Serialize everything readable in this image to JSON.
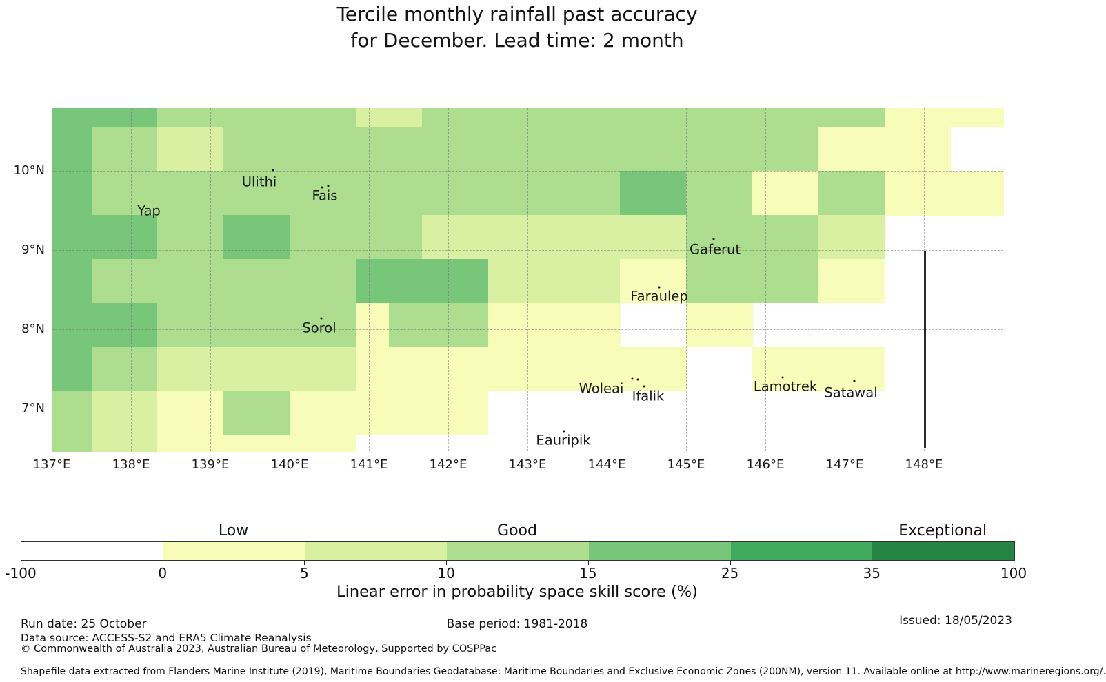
{
  "title": {
    "line1": "Tercile monthly rainfall past accuracy",
    "line2": "for December. Lead time: 2 month"
  },
  "chart_data": {
    "type": "heatmap",
    "title": "Tercile monthly rainfall past accuracy for December. Lead time: 2 month",
    "grid_on": true,
    "lon_edges": [
      137.0,
      137.5,
      138.3333,
      139.1667,
      140.0,
      140.8333,
      141.25,
      141.6667,
      142.5,
      143.3333,
      144.1667,
      145.0,
      145.8333,
      146.6667,
      147.5,
      148.3333,
      149.0
    ],
    "lat_edges": [
      10.7913,
      10.5556,
      10.0,
      9.4444,
      8.8889,
      8.3333,
      7.7778,
      7.2222,
      6.6667,
      6.4609
    ],
    "bins": {
      "edges": [
        -100,
        0,
        5,
        10,
        15,
        25,
        35,
        100
      ],
      "colors": [
        "#ffffff",
        "#f7fcb9",
        "#d9f0a3",
        "#addd8e",
        "#78c679",
        "#41ab5d",
        "#238443"
      ]
    },
    "grid": [
      [
        4,
        4,
        3,
        3,
        3,
        2,
        2,
        3,
        3,
        3,
        3,
        3,
        3,
        3,
        1,
        1
      ],
      [
        4,
        3,
        2,
        3,
        3,
        3,
        3,
        3,
        3,
        3,
        3,
        3,
        3,
        1,
        1,
        0
      ],
      [
        4,
        3,
        3,
        3,
        3,
        3,
        3,
        3,
        3,
        3,
        4,
        3,
        1,
        3,
        1,
        1
      ],
      [
        4,
        4,
        3,
        4,
        3,
        3,
        3,
        2,
        2,
        2,
        2,
        3,
        3,
        2,
        0,
        0
      ],
      [
        4,
        3,
        3,
        3,
        3,
        4,
        4,
        4,
        2,
        2,
        1,
        3,
        3,
        1,
        0,
        0
      ],
      [
        4,
        4,
        3,
        3,
        3,
        1,
        3,
        3,
        1,
        1,
        0,
        1,
        0,
        0,
        0,
        0
      ],
      [
        4,
        3,
        2,
        2,
        2,
        1,
        1,
        1,
        1,
        1,
        1,
        0,
        1,
        1,
        0,
        0
      ],
      [
        3,
        2,
        1,
        3,
        1,
        1,
        1,
        1,
        0,
        0,
        0,
        0,
        0,
        0,
        0,
        0
      ],
      [
        3,
        2,
        1,
        1,
        1,
        0,
        0,
        0,
        0,
        0,
        0,
        0,
        0,
        0,
        0,
        0
      ]
    ],
    "x_ticks": [
      "137°E",
      "138°E",
      "139°E",
      "140°E",
      "141°E",
      "142°E",
      "143°E",
      "144°E",
      "145°E",
      "146°E",
      "147°E",
      "148°E"
    ],
    "y_ticks": [
      {
        "label": "10°N",
        "lat": 10
      },
      {
        "label": "9°N",
        "lat": 9
      },
      {
        "label": "8°N",
        "lat": 8
      },
      {
        "label": "7°N",
        "lat": 7
      }
    ],
    "islands": [
      {
        "name": "Yap",
        "label_x": 216,
        "label_y": 306,
        "dots": []
      },
      {
        "name": "Ulithi",
        "label_x": 376,
        "label_y": 264,
        "dots": [
          [
            396,
            247
          ]
        ]
      },
      {
        "name": "Fais",
        "label_x": 471,
        "label_y": 284,
        "dots": [
          [
            467,
            272
          ],
          [
            476,
            270
          ]
        ]
      },
      {
        "name": "Gaferut",
        "label_x": 1037,
        "label_y": 362,
        "dots": [
          [
            1035,
            347
          ]
        ]
      },
      {
        "name": "Faraulep",
        "label_x": 956,
        "label_y": 430,
        "dots": [
          [
            956,
            417
          ]
        ]
      },
      {
        "name": "Sorol",
        "label_x": 463,
        "label_y": 476,
        "dots": [
          [
            466,
            462
          ]
        ]
      },
      {
        "name": "Woleai",
        "label_x": 872,
        "label_y": 564,
        "dots": [
          [
            917,
            549
          ],
          [
            925,
            551
          ]
        ]
      },
      {
        "name": "Ifalik",
        "label_x": 940,
        "label_y": 575,
        "dots": [
          [
            934,
            561
          ]
        ]
      },
      {
        "name": "Lamotrek",
        "label_x": 1139,
        "label_y": 561,
        "dots": [
          [
            1135,
            548
          ]
        ]
      },
      {
        "name": "Satawal",
        "label_x": 1234,
        "label_y": 570,
        "dots": [
          [
            1239,
            553
          ]
        ]
      },
      {
        "name": "Eauripik",
        "label_x": 817,
        "label_y": 639,
        "dots": [
          [
            818,
            626
          ]
        ]
      }
    ],
    "eez_boundary_line": {
      "x": 1340,
      "y_top": 365,
      "y_bottom": 650
    }
  },
  "colorbar": {
    "zone_labels": [
      "Low",
      "Good",
      "Exceptional"
    ],
    "tick_labels": [
      "-100",
      "0",
      "5",
      "10",
      "15",
      "25",
      "35",
      "100"
    ],
    "axis_label": "Linear error in probability space skill score (%)"
  },
  "footer": {
    "run_date": "Run date: 25 October",
    "base_period": "Base period: 1981-2018",
    "issued": "Issued: 18/05/2023",
    "data_source": "Data source: ACCESS-S2 and ERA5 Climate Reanalysis",
    "copyright": "© Commonwealth of Australia 2023, Australian Bureau of Meteorology, Supported by COSPPac",
    "shapefile": "Shapefile data extracted from Flanders Marine Institute (2019), Maritime Boundaries Geodatabase: Maritime Boundaries and Exclusive Economic Zones (200NM), version 11. Available online at http://www.marineregions.org/."
  }
}
